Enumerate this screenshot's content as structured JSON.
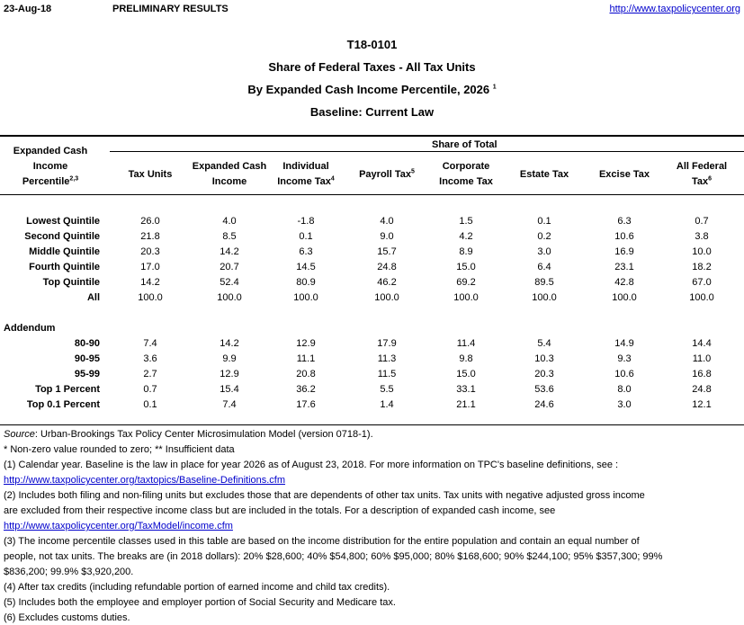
{
  "header": {
    "date": "23-Aug-18",
    "status": "PRELIMINARY RESULTS",
    "url": "http://www.taxpolicycenter.org"
  },
  "titles": {
    "table_id": "T18-0101",
    "line1": "Share of Federal Taxes - All Tax Units",
    "line2": "By Expanded Cash Income Percentile, 2026",
    "line2_sup": "1",
    "line3": "Baseline: Current Law"
  },
  "columns": {
    "group_label": "Share of Total",
    "stub": [
      "Expanded Cash",
      "Income",
      "Percentile"
    ],
    "stub_sup": "2,3",
    "headers": [
      {
        "l1": "Tax Units",
        "l2": "",
        "sup": ""
      },
      {
        "l1": "Expanded Cash",
        "l2": "Income",
        "sup": ""
      },
      {
        "l1": "Individual",
        "l2": "Income Tax",
        "sup": "4"
      },
      {
        "l1": "Payroll Tax",
        "l2": "",
        "sup": "5"
      },
      {
        "l1": "Corporate",
        "l2": "Income Tax",
        "sup": ""
      },
      {
        "l1": "Estate Tax",
        "l2": "",
        "sup": ""
      },
      {
        "l1": "Excise Tax",
        "l2": "",
        "sup": ""
      },
      {
        "l1": "All Federal",
        "l2": "Tax",
        "sup": "6"
      }
    ]
  },
  "rows": [
    {
      "label": "Lowest Quintile",
      "values": [
        "26.0",
        "4.0",
        "-1.8",
        "4.0",
        "1.5",
        "0.1",
        "6.3",
        "0.7"
      ]
    },
    {
      "label": "Second Quintile",
      "values": [
        "21.8",
        "8.5",
        "0.1",
        "9.0",
        "4.2",
        "0.2",
        "10.6",
        "3.8"
      ]
    },
    {
      "label": "Middle Quintile",
      "values": [
        "20.3",
        "14.2",
        "6.3",
        "15.7",
        "8.9",
        "3.0",
        "16.9",
        "10.0"
      ]
    },
    {
      "label": "Fourth Quintile",
      "values": [
        "17.0",
        "20.7",
        "14.5",
        "24.8",
        "15.0",
        "6.4",
        "23.1",
        "18.2"
      ]
    },
    {
      "label": "Top Quintile",
      "values": [
        "14.2",
        "52.4",
        "80.9",
        "46.2",
        "69.2",
        "89.5",
        "42.8",
        "67.0"
      ]
    },
    {
      "label": "All",
      "values": [
        "100.0",
        "100.0",
        "100.0",
        "100.0",
        "100.0",
        "100.0",
        "100.0",
        "100.0"
      ]
    }
  ],
  "addendum": {
    "label": "Addendum",
    "rows": [
      {
        "label": "80-90",
        "values": [
          "7.4",
          "14.2",
          "12.9",
          "17.9",
          "11.4",
          "5.4",
          "14.9",
          "14.4"
        ]
      },
      {
        "label": "90-95",
        "values": [
          "3.6",
          "9.9",
          "11.1",
          "11.3",
          "9.8",
          "10.3",
          "9.3",
          "11.0"
        ]
      },
      {
        "label": "95-99",
        "values": [
          "2.7",
          "12.9",
          "20.8",
          "11.5",
          "15.0",
          "20.3",
          "10.6",
          "16.8"
        ]
      },
      {
        "label": "Top 1 Percent",
        "values": [
          "0.7",
          "15.4",
          "36.2",
          "5.5",
          "33.1",
          "53.6",
          "8.0",
          "24.8"
        ]
      },
      {
        "label": "Top 0.1 Percent",
        "values": [
          "0.1",
          "7.4",
          "17.6",
          "1.4",
          "21.1",
          "24.6",
          "3.0",
          "12.1"
        ]
      }
    ]
  },
  "notes": {
    "source_label": "Source",
    "source_text": ": Urban-Brookings Tax Policy Center Microsimulation Model (version 0718-1).",
    "n0": "* Non-zero value rounded to zero; ** Insufficient data",
    "n1": "(1) Calendar year. Baseline is the law in place for year 2026 as of August 23, 2018. For more information on TPC's baseline definitions, see :",
    "n1_link": "http://www.taxpolicycenter.org/taxtopics/Baseline-Definitions.cfm",
    "n2a": "(2) Includes both filing and non-filing units but excludes those that are dependents of other tax units. Tax units with negative adjusted gross income",
    "n2b": "are excluded from their respective income class but are included in the totals. For a description of expanded cash income, see",
    "n2_link": "http://www.taxpolicycenter.org/TaxModel/income.cfm",
    "n3a": "(3) The income percentile classes used in this table are based on the income distribution for the entire population and contain an equal number of",
    "n3b": "people, not tax units. The breaks are (in 2018 dollars): 20% $28,600; 40% $54,800; 60% $95,000; 80% $168,600; 90% $244,100; 95% $357,300; 99%",
    "n3c": "$836,200; 99.9% $3,920,200.",
    "n4": "(4) After tax credits (including refundable portion of earned income and child tax credits).",
    "n5": "(5) Includes both the employee and employer portion of Social Security and Medicare tax.",
    "n6": "(6) Excludes customs duties."
  }
}
